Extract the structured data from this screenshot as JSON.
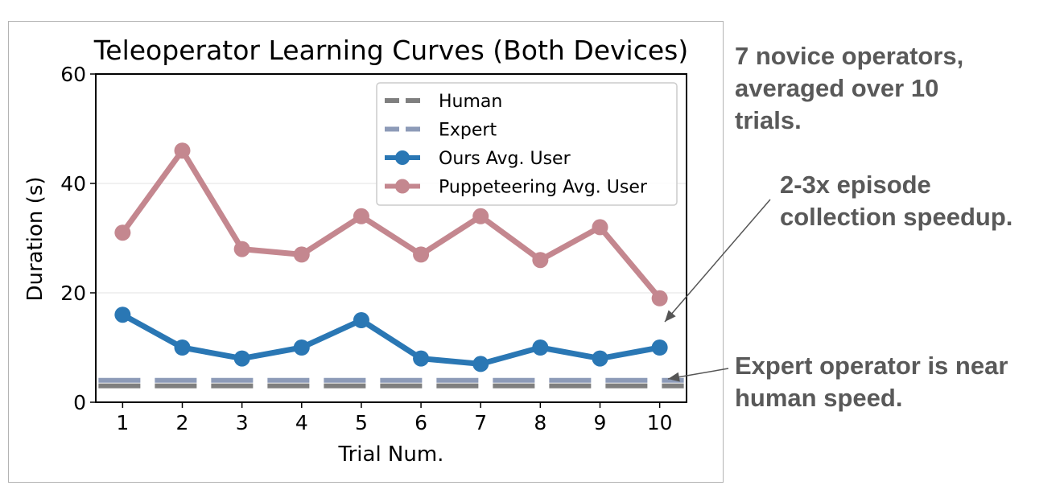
{
  "chart_data": {
    "type": "line",
    "title": "Teleoperator Learning Curves (Both Devices)",
    "xlabel": "Trial Num.",
    "ylabel": "Duration (s)",
    "x": [
      1,
      2,
      3,
      4,
      5,
      6,
      7,
      8,
      9,
      10
    ],
    "xlim": [
      0.55,
      10.45
    ],
    "ylim": [
      0,
      60
    ],
    "yticks": [
      0,
      20,
      40,
      60
    ],
    "grid": "horizontal",
    "legend_position": "top-right",
    "series": [
      {
        "name": "Human",
        "style": "dashed",
        "color": "#7f7f7f",
        "values": [
          3,
          3,
          3,
          3,
          3,
          3,
          3,
          3,
          3,
          3
        ]
      },
      {
        "name": "Expert",
        "style": "dashed",
        "color": "#8d9bb8",
        "values": [
          4,
          4,
          4,
          4,
          4,
          4,
          4,
          4,
          4,
          4
        ]
      },
      {
        "name": "Ours Avg. User",
        "style": "line-marker",
        "color": "#2a77b4",
        "values": [
          16,
          10,
          8,
          10,
          15,
          8,
          7,
          10,
          8,
          10
        ]
      },
      {
        "name": "Puppeteering Avg. User",
        "style": "line-marker",
        "color": "#c4878f",
        "values": [
          31,
          46,
          28,
          27,
          34,
          27,
          34,
          26,
          32,
          19
        ]
      }
    ]
  },
  "annotations": {
    "novice_lines": [
      "7 novice operators,",
      "averaged over 10",
      "trials."
    ],
    "speedup_lines": [
      "2-3x episode",
      "collection speedup."
    ],
    "expert_lines": [
      "Expert operator is near",
      "human speed."
    ],
    "arrow_color": "#555555"
  }
}
